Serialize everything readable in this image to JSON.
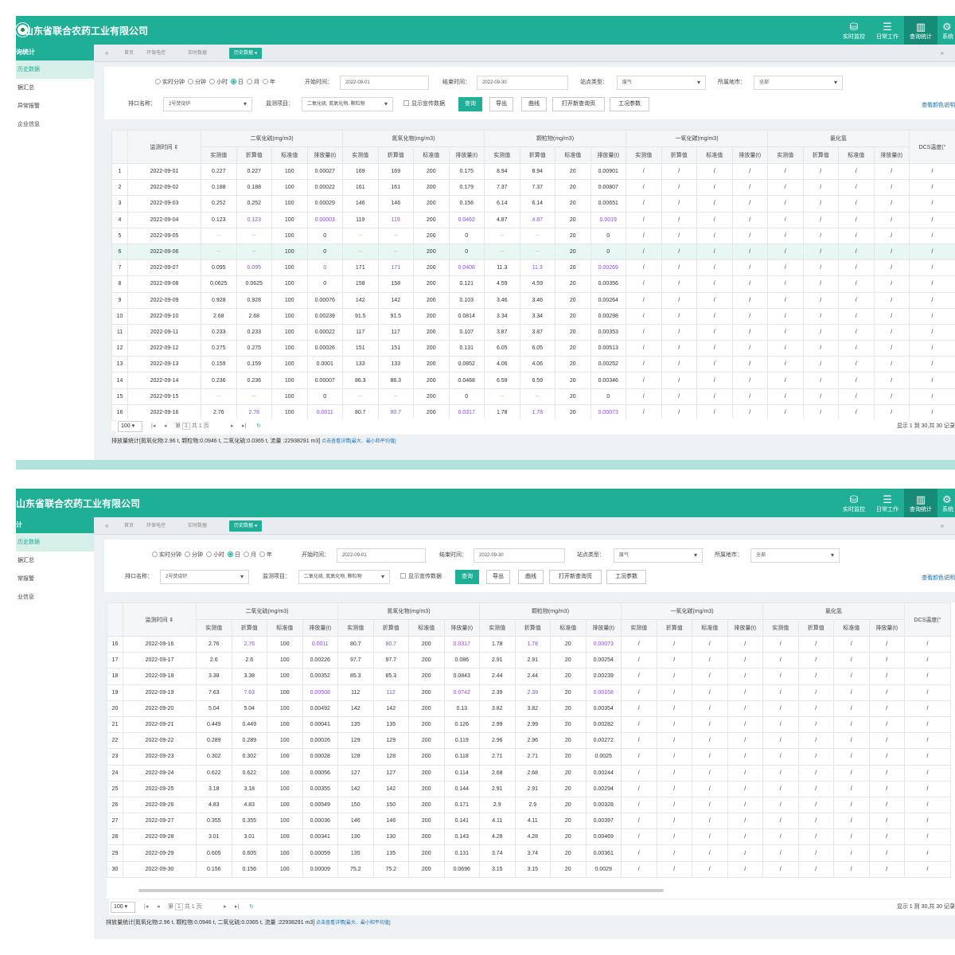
{
  "company": "山东省联合农药工业有限公司",
  "topnav": [
    {
      "icon": "database-icon",
      "glyph": "⛁",
      "label": "实时监控"
    },
    {
      "icon": "server-icon",
      "glyph": "☰",
      "label": "日常工作"
    },
    {
      "icon": "chart-icon",
      "glyph": "▥",
      "label": "查询统计"
    },
    {
      "icon": "gear-icon",
      "glyph": "⚙",
      "label": "系统"
    }
  ],
  "sidebar": {
    "p1": {
      "head": "询统计",
      "items": [
        "历史数据",
        "据汇总",
        "异常报警",
        "企业信息"
      ]
    },
    "p2": {
      "head": "计",
      "items": [
        "历史数据",
        "据汇总",
        "常报警",
        "业信息"
      ]
    }
  },
  "tabs": {
    "home": "首页",
    "env": "环保电控",
    "realtime": "实时数据",
    "history": "历史数据"
  },
  "filters": {
    "radios": [
      "实时分钟",
      "分钟",
      "小时",
      "日",
      "月",
      "年"
    ],
    "start_label": "开始时间：",
    "start_value": "2022-09-01",
    "end_label": "结束时间：",
    "end_value": "2022-09-30",
    "station_type_label": "站点类型：",
    "station_type_value": "废气",
    "city_label": "所属地市：",
    "city_value": "全部",
    "outlet_label": "排口名称：",
    "outlet_value": "2号焚烧炉",
    "items_label": "监测项目：",
    "items_value": "二氧化硫, 氮氧化物, 颗粒物",
    "show_promo": "显示宣传数据",
    "buttons": {
      "query": "查询",
      "export": "导出",
      "curve": "曲线",
      "new_page": "打开新查询页",
      "params": "工况参数"
    },
    "color_link": "查看颜色说明"
  },
  "table": {
    "time_header": "监测时间",
    "groups": [
      "二氧化硫(mg/m3)",
      "氮氧化物(mg/m3)",
      "颗粒物(mg/m3)",
      "一氧化碳(mg/m3)",
      "氯化氢"
    ],
    "dcs_header": "DCS温度(°",
    "sub_headers": [
      "实测值",
      "折算值",
      "标准值",
      "排放量(t)"
    ],
    "rows": [
      [
        1,
        "2022-09-01",
        "0.227",
        "0.227",
        "100",
        "0.00027",
        "169",
        "169",
        "200",
        "0.175",
        "8.94",
        "8.94",
        "20",
        "0.00901"
      ],
      [
        2,
        "2022-09-02",
        "0.188",
        "0.188",
        "100",
        "0.00022",
        "161",
        "161",
        "200",
        "0.179",
        "7.37",
        "7.37",
        "20",
        "0.00807"
      ],
      [
        3,
        "2022-09-03",
        "0.252",
        "0.252",
        "100",
        "0.00029",
        "146",
        "146",
        "200",
        "0.156",
        "6.14",
        "6.14",
        "20",
        "0.00651"
      ],
      [
        4,
        "2022-09-04",
        "0.123",
        "0.123",
        "100",
        "0.00003",
        "119",
        "119",
        "200",
        "0.0462",
        "4.87",
        "4.87",
        "20",
        "0.0019"
      ],
      [
        5,
        "2022-09-05",
        "--",
        "--",
        "100",
        "0",
        "--",
        "--",
        "200",
        "0",
        "--",
        "--",
        "20",
        "0"
      ],
      [
        6,
        "2022-09-06",
        "--",
        "--",
        "100",
        "0",
        "--",
        "--",
        "200",
        "0",
        "--",
        "--",
        "20",
        "0"
      ],
      [
        7,
        "2022-09-07",
        "0.095",
        "0.095",
        "100",
        "0",
        "171",
        "171",
        "200",
        "0.0408",
        "11.3",
        "11.3",
        "20",
        "0.00269"
      ],
      [
        8,
        "2022-09-08",
        "0.0625",
        "0.0625",
        "100",
        "0",
        "158",
        "158",
        "200",
        "0.121",
        "4.59",
        "4.59",
        "20",
        "0.00356"
      ],
      [
        9,
        "2022-09-09",
        "0.928",
        "0.928",
        "100",
        "0.00076",
        "142",
        "142",
        "200",
        "0.103",
        "3.46",
        "3.46",
        "20",
        "0.00264"
      ],
      [
        10,
        "2022-09-10",
        "2.68",
        "2.68",
        "100",
        "0.00239",
        "91.5",
        "91.5",
        "200",
        "0.0814",
        "3.34",
        "3.34",
        "20",
        "0.00298"
      ],
      [
        11,
        "2022-09-11",
        "0.233",
        "0.233",
        "100",
        "0.00022",
        "117",
        "117",
        "200",
        "0.107",
        "3.87",
        "3.87",
        "20",
        "0.00353"
      ],
      [
        12,
        "2022-09-12",
        "0.275",
        "0.275",
        "100",
        "0.00026",
        "151",
        "151",
        "200",
        "0.131",
        "6.05",
        "6.05",
        "20",
        "0.00513"
      ],
      [
        13,
        "2022-09-13",
        "0.159",
        "0.159",
        "100",
        "0.0001",
        "133",
        "133",
        "200",
        "0.0852",
        "4.06",
        "4.06",
        "20",
        "0.00252"
      ],
      [
        14,
        "2022-09-14",
        "0.236",
        "0.236",
        "100",
        "0.00007",
        "86.3",
        "86.3",
        "200",
        "0.0468",
        "6.59",
        "6.59",
        "20",
        "0.00346"
      ],
      [
        15,
        "2022-09-15",
        "--",
        "--",
        "100",
        "0",
        "--",
        "--",
        "200",
        "0",
        "--",
        "--",
        "20",
        "0"
      ],
      [
        16,
        "2022-09-16",
        "2.76",
        "2.76",
        "100",
        "0.0011",
        "80.7",
        "80.7",
        "200",
        "0.0317",
        "1.78",
        "1.78",
        "20",
        "0.00073"
      ],
      [
        17,
        "2022-09-17",
        "2.6",
        "2.6",
        "100",
        "0.00226",
        "97.7",
        "97.7",
        "200",
        "0.086",
        "2.91",
        "2.91",
        "20",
        "0.00254"
      ],
      [
        18,
        "2022-09-18",
        "3.38",
        "3.38",
        "100",
        "0.00352",
        "85.3",
        "85.3",
        "200",
        "0.0843",
        "2.44",
        "2.44",
        "20",
        "0.00239"
      ],
      [
        19,
        "2022-09-19",
        "7.63",
        "7.63",
        "100",
        "0.00508",
        "112",
        "112",
        "200",
        "0.0742",
        "2.39",
        "2.39",
        "20",
        "0.00158"
      ],
      [
        20,
        "2022-09-20",
        "5.04",
        "5.04",
        "100",
        "0.00492",
        "142",
        "142",
        "200",
        "0.13",
        "3.82",
        "3.82",
        "20",
        "0.00354"
      ],
      [
        21,
        "2022-09-21",
        "0.449",
        "0.449",
        "100",
        "0.00041",
        "135",
        "135",
        "200",
        "0.126",
        "2.99",
        "2.99",
        "20",
        "0.00282"
      ],
      [
        22,
        "2022-09-22",
        "0.289",
        "0.289",
        "100",
        "0.00026",
        "129",
        "129",
        "200",
        "0.119",
        "2.96",
        "2.96",
        "20",
        "0.00272"
      ],
      [
        23,
        "2022-09-23",
        "0.302",
        "0.302",
        "100",
        "0.00028",
        "128",
        "128",
        "200",
        "0.118",
        "2.71",
        "2.71",
        "20",
        "0.0025"
      ],
      [
        24,
        "2022-09-24",
        "0.622",
        "0.622",
        "100",
        "0.00056",
        "127",
        "127",
        "200",
        "0.114",
        "2.68",
        "2.68",
        "20",
        "0.00244"
      ],
      [
        25,
        "2022-09-25",
        "3.18",
        "3.18",
        "100",
        "0.00355",
        "142",
        "142",
        "200",
        "0.144",
        "2.91",
        "2.91",
        "20",
        "0.00294"
      ],
      [
        26,
        "2022-09-26",
        "4.83",
        "4.83",
        "100",
        "0.00549",
        "150",
        "150",
        "200",
        "0.171",
        "2.9",
        "2.9",
        "20",
        "0.00328"
      ],
      [
        27,
        "2022-09-27",
        "0.355",
        "0.355",
        "100",
        "0.00036",
        "146",
        "146",
        "200",
        "0.141",
        "4.11",
        "4.11",
        "20",
        "0.00397"
      ],
      [
        28,
        "2022-09-28",
        "3.01",
        "3.01",
        "100",
        "0.00341",
        "130",
        "130",
        "200",
        "0.143",
        "4.28",
        "4.28",
        "20",
        "0.00469"
      ],
      [
        29,
        "2022-09-29",
        "0.605",
        "0.605",
        "100",
        "0.00059",
        "135",
        "135",
        "200",
        "0.131",
        "3.74",
        "3.74",
        "20",
        "0.00361"
      ],
      [
        30,
        "2022-09-30",
        "0.156",
        "0.156",
        "100",
        "0.00009",
        "75.2",
        "75.2",
        "200",
        "0.0696",
        "3.15",
        "3.15",
        "20",
        "0.0029"
      ]
    ],
    "empty_cell": "/",
    "purple_rows": [
      4,
      7,
      16,
      19
    ],
    "highlight_row": 6
  },
  "footer": {
    "page_size": "100",
    "page_label_pre": "第",
    "page_value": "1",
    "page_label_post": "共 1 页",
    "info": "显示 1 到 30,共 30 记录"
  },
  "stats": {
    "text": "排放量统计[氮氧化物:2.96 t, 颗粒物:0.0946 t, 二氧化硫:0.0365 t, 流量 :22938291 m3]",
    "link": "点击查看详情[最大、最小和平均值]"
  },
  "colors": {
    "accent": "#1fae96",
    "purple": "#8b4ee0",
    "dash": "#e0a030"
  }
}
